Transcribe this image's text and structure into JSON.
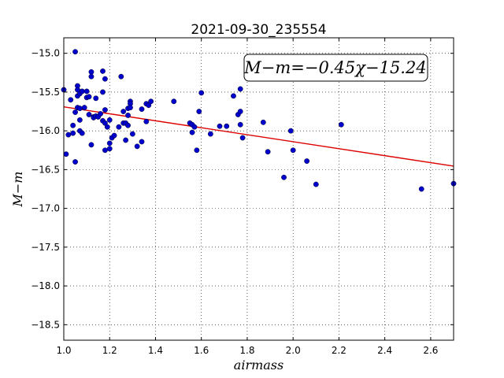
{
  "chart_data": {
    "type": "scatter",
    "title": "2021-09-30_235554",
    "xlabel": "airmass",
    "ylabel": "M−m",
    "xlim": [
      1.0,
      2.7
    ],
    "ylim": [
      -18.7,
      -14.8
    ],
    "x_ticks": [
      1.0,
      1.2,
      1.4,
      1.6,
      1.8,
      2.0,
      2.2,
      2.4,
      2.6
    ],
    "x_tick_labels": [
      "1.0",
      "1.2",
      "1.4",
      "1.6",
      "1.8",
      "2.0",
      "2.2",
      "2.4",
      "2.6"
    ],
    "y_ticks": [
      -15.0,
      -15.5,
      -16.0,
      -16.5,
      -17.0,
      -17.5,
      -18.0,
      -18.5
    ],
    "y_tick_labels": [
      "−15.0",
      "−15.5",
      "−16.0",
      "−16.5",
      "−17.0",
      "−17.5",
      "−18.0",
      "−18.5"
    ],
    "y_inverted": true,
    "grid": true,
    "annotation": "M−m=−0.45χ−15.24",
    "fit": {
      "slope": -0.45,
      "intercept": -15.24,
      "color": "#dd0000"
    },
    "point_color": "#0000cc",
    "points": [
      [
        1.0,
        -15.47
      ],
      [
        1.01,
        -16.3
      ],
      [
        1.02,
        -16.05
      ],
      [
        1.03,
        -15.6
      ],
      [
        1.04,
        -16.03
      ],
      [
        1.04,
        -15.93
      ],
      [
        1.05,
        -15.76
      ],
      [
        1.05,
        -14.98
      ],
      [
        1.05,
        -16.4
      ],
      [
        1.06,
        -15.42
      ],
      [
        1.06,
        -15.47
      ],
      [
        1.06,
        -15.55
      ],
      [
        1.06,
        -15.7
      ],
      [
        1.07,
        -15.52
      ],
      [
        1.07,
        -15.71
      ],
      [
        1.07,
        -16.0
      ],
      [
        1.08,
        -16.03
      ],
      [
        1.07,
        -15.86
      ],
      [
        1.08,
        -15.49
      ],
      [
        1.09,
        -15.7
      ],
      [
        1.1,
        -15.49
      ],
      [
        1.1,
        -15.57
      ],
      [
        1.11,
        -15.56
      ],
      [
        1.11,
        -15.79
      ],
      [
        1.12,
        -16.18
      ],
      [
        1.12,
        -15.24
      ],
      [
        1.12,
        -15.3
      ],
      [
        1.13,
        -15.82
      ],
      [
        1.13,
        -15.83
      ],
      [
        1.14,
        -15.81
      ],
      [
        1.14,
        -15.58
      ],
      [
        1.15,
        -15.82
      ],
      [
        1.16,
        -15.78
      ],
      [
        1.17,
        -15.23
      ],
      [
        1.17,
        -15.5
      ],
      [
        1.17,
        -15.87
      ],
      [
        1.18,
        -15.33
      ],
      [
        1.18,
        -15.73
      ],
      [
        1.18,
        -15.9
      ],
      [
        1.18,
        -16.25
      ],
      [
        1.19,
        -15.95
      ],
      [
        1.2,
        -16.16
      ],
      [
        1.2,
        -16.23
      ],
      [
        1.2,
        -15.86
      ],
      [
        1.21,
        -16.09
      ],
      [
        1.22,
        -16.06
      ],
      [
        1.24,
        -15.95
      ],
      [
        1.25,
        -15.3
      ],
      [
        1.26,
        -15.75
      ],
      [
        1.26,
        -15.9
      ],
      [
        1.27,
        -15.9
      ],
      [
        1.27,
        -16.12
      ],
      [
        1.28,
        -15.71
      ],
      [
        1.28,
        -15.8
      ],
      [
        1.28,
        -15.93
      ],
      [
        1.29,
        -15.62
      ],
      [
        1.29,
        -15.65
      ],
      [
        1.29,
        -15.7
      ],
      [
        1.3,
        -16.04
      ],
      [
        1.32,
        -16.2
      ],
      [
        1.34,
        -16.14
      ],
      [
        1.34,
        -15.72
      ],
      [
        1.36,
        -15.65
      ],
      [
        1.36,
        -15.88
      ],
      [
        1.37,
        -15.67
      ],
      [
        1.38,
        -15.62
      ],
      [
        1.48,
        -15.62
      ],
      [
        1.55,
        -15.9
      ],
      [
        1.56,
        -16.02
      ],
      [
        1.56,
        -15.92
      ],
      [
        1.57,
        -15.95
      ],
      [
        1.58,
        -16.25
      ],
      [
        1.59,
        -15.75
      ],
      [
        1.6,
        -15.51
      ],
      [
        1.64,
        -16.04
      ],
      [
        1.68,
        -15.94
      ],
      [
        1.71,
        -15.94
      ],
      [
        1.74,
        -15.55
      ],
      [
        1.76,
        -15.79
      ],
      [
        1.77,
        -15.46
      ],
      [
        1.77,
        -15.75
      ],
      [
        1.77,
        -15.92
      ],
      [
        1.78,
        -16.09
      ],
      [
        1.87,
        -15.89
      ],
      [
        1.89,
        -16.27
      ],
      [
        1.96,
        -16.6
      ],
      [
        1.99,
        -16.0
      ],
      [
        2.0,
        -16.25
      ],
      [
        2.06,
        -16.39
      ],
      [
        2.1,
        -16.69
      ],
      [
        2.21,
        -15.92
      ],
      [
        2.56,
        -16.75
      ],
      [
        2.7,
        -16.68
      ]
    ]
  }
}
